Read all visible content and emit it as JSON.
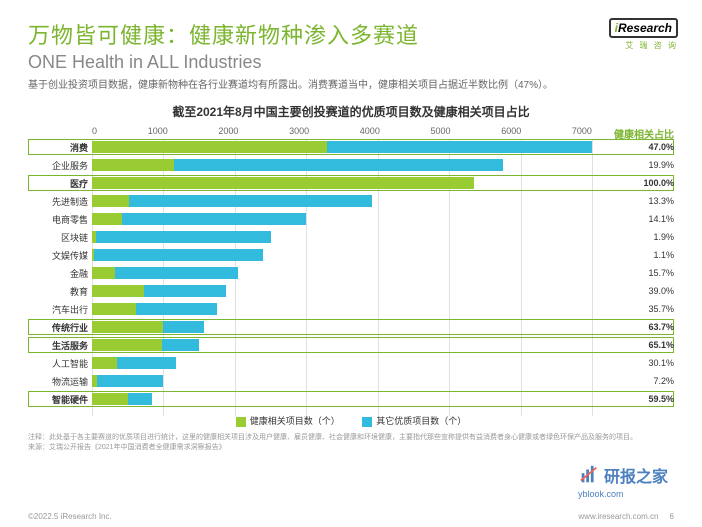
{
  "header": {
    "title_cn": "万物皆可健康：健康新物种渗入多赛道",
    "title_en": "ONE Health in ALL Industries",
    "subtitle": "基于创业投资项目数据，健康新物种在各行业赛道均有所露出。消费赛道当中，健康相关项目占据近半数比例（47%）。"
  },
  "logo": {
    "brand_i": "i",
    "brand_rest": "Research",
    "sub": "艾 瑞 咨 询"
  },
  "chart": {
    "title": "截至2021年8月中国主要创投赛道的优质项目数及健康相关项目占比",
    "type": "stacked-bar-horizontal",
    "x_ticks": [
      0,
      1000,
      2000,
      3000,
      4000,
      5000,
      6000,
      7000
    ],
    "x_max": 7000,
    "pct_header": "健康相关占比",
    "colors": {
      "green": "#99cc33",
      "blue": "#33bbdd"
    },
    "rows": [
      {
        "label": "消费",
        "green": 3380,
        "blue": 3820,
        "pct": "47.0%",
        "highlight": true
      },
      {
        "label": "企业服务",
        "green": 1150,
        "blue": 4600,
        "pct": "19.9%",
        "highlight": false
      },
      {
        "label": "医疗",
        "green": 5350,
        "blue": 0,
        "pct": "100.0%",
        "highlight": true
      },
      {
        "label": "先进制造",
        "green": 520,
        "blue": 3400,
        "pct": "13.3%",
        "highlight": false
      },
      {
        "label": "电商零售",
        "green": 420,
        "blue": 2580,
        "pct": "14.1%",
        "highlight": false
      },
      {
        "label": "区块链",
        "green": 50,
        "blue": 2450,
        "pct": "1.9%",
        "highlight": false
      },
      {
        "label": "文娱传媒",
        "green": 30,
        "blue": 2370,
        "pct": "1.1%",
        "highlight": false
      },
      {
        "label": "金融",
        "green": 320,
        "blue": 1730,
        "pct": "15.7%",
        "highlight": false
      },
      {
        "label": "教育",
        "green": 730,
        "blue": 1150,
        "pct": "39.0%",
        "highlight": false
      },
      {
        "label": "汽车出行",
        "green": 620,
        "blue": 1130,
        "pct": "35.7%",
        "highlight": false
      },
      {
        "label": "传统行业",
        "green": 1000,
        "blue": 570,
        "pct": "63.7%",
        "highlight": true
      },
      {
        "label": "生活服务",
        "green": 980,
        "blue": 520,
        "pct": "65.1%",
        "highlight": true
      },
      {
        "label": "人工智能",
        "green": 350,
        "blue": 830,
        "pct": "30.1%",
        "highlight": false
      },
      {
        "label": "物流运输",
        "green": 70,
        "blue": 930,
        "pct": "7.2%",
        "highlight": false
      },
      {
        "label": "智能硬件",
        "green": 500,
        "blue": 340,
        "pct": "59.5%",
        "highlight": true
      }
    ],
    "legend": {
      "green_label": "健康相关项目数（个）",
      "blue_label": "其它优质项目数（个）"
    }
  },
  "footnotes": {
    "note": "注释：此处基于各主要赛道的优质项目进行统计，这里的健康相关项目涉及用户健康、雇员健康、社会健康和环境健康，主要指代那些宣称提供有益消费者身心健康或者绿色环保产品及服务的项目。",
    "source": "来源：艾瑞公开报告《2021年中国消费者全健康需求洞察报告》"
  },
  "footer": {
    "copyright": "©2022.5 iResearch Inc.",
    "url": "www.iresearch.com.cn",
    "page": "6"
  },
  "watermark": {
    "text": "研报之家",
    "url": "yblook.com"
  }
}
